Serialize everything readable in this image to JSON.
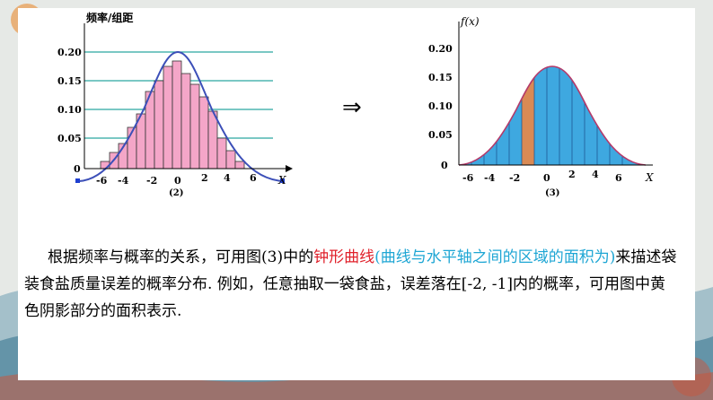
{
  "left_chart": {
    "ylabel": "频率/组距",
    "xlabel": "X",
    "yticks": [
      "0.20",
      "0.15",
      "0.10",
      "0.05",
      "0"
    ],
    "xticks": [
      "-6",
      "-4",
      "-2",
      "0",
      "2",
      "4",
      "6"
    ],
    "caption": "(2)"
  },
  "right_chart": {
    "ylabel": "f(x)",
    "xlabel": "X",
    "yticks": [
      "0.20",
      "0.15",
      "0.10",
      "0.05",
      "0"
    ],
    "xticks": [
      "-6",
      "-4",
      "-2",
      "0",
      "2",
      "4",
      "6"
    ],
    "caption": "(3)"
  },
  "arrow": "⇒",
  "paragraph": {
    "part1": "根据频率与概率的关系，可用图(3)中的",
    "red": "钟形曲线",
    "cyan": "(曲线与水平轴之间的区域的面积为)",
    "part2": "来描述袋装食盐质量误差的概率分布. 例如，任意抽取一袋食盐，误差落在[-2, -1]内的概率，可用图中黄色阴影部分的面积表示."
  },
  "colors": {
    "bar_fill": "#f4a6c8",
    "curve": "#3c4fb8",
    "area_fill": "#3ea8e0",
    "shaded_strip": "#d98a55",
    "bell_outline": "#b43a6a",
    "gridline": "#2aa7a0"
  }
}
